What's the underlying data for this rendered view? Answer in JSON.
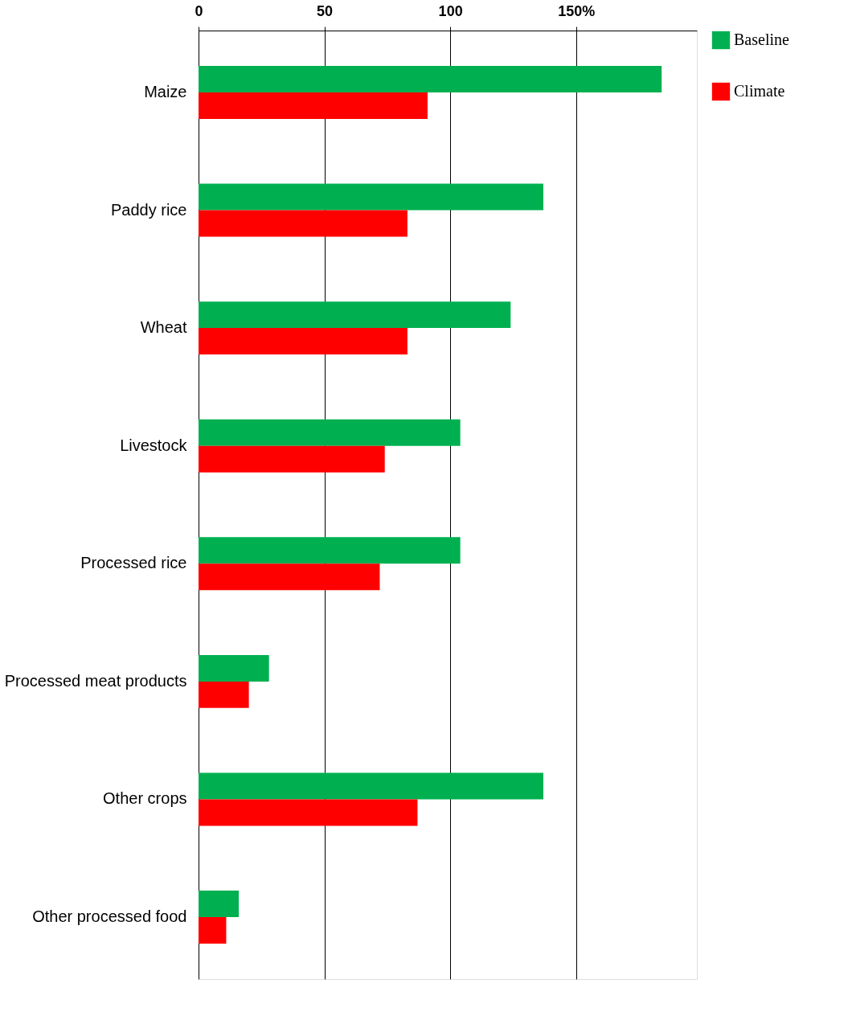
{
  "chart_data": {
    "type": "bar",
    "orientation": "horizontal",
    "categories": [
      "Maize",
      "Paddy rice",
      "Wheat",
      "Livestock",
      "Processed rice",
      "Processed meat products",
      "Other crops",
      "Other processed food"
    ],
    "series": [
      {
        "name": "Baseline",
        "color": "#00b050",
        "values": [
          184,
          137,
          124,
          104,
          104,
          28,
          137,
          16
        ]
      },
      {
        "name": "Climate",
        "color": "#ff0000",
        "values": [
          91,
          83,
          83,
          74,
          72,
          20,
          87,
          11
        ]
      }
    ],
    "xlim": [
      0,
      198
    ],
    "xticks": [
      0,
      50,
      100,
      {
        "value": 150,
        "label": "150%"
      }
    ],
    "grid": "x",
    "legend": "right"
  }
}
